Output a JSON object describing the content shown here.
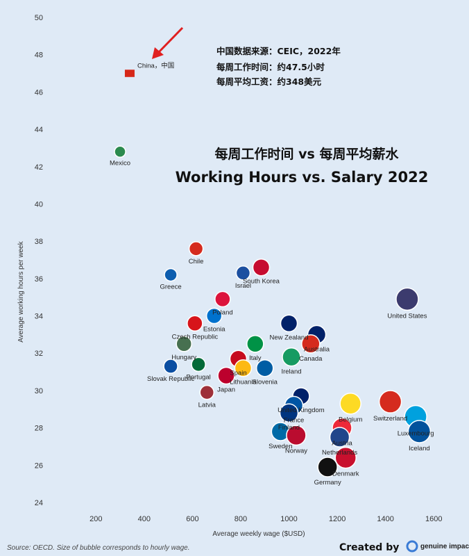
{
  "chart_data": {
    "type": "scatter",
    "title_cn": "每周工作时间 vs 每周平均薪水",
    "title": "Working Hours vs. Salary 2022",
    "xlabel": "Average weekly wage ($USD)",
    "ylabel": "Average working hours per week",
    "xlim": [
      90,
      1700
    ],
    "ylim": [
      24,
      50
    ],
    "xticks": [
      200,
      400,
      600,
      800,
      1000,
      1200,
      1400,
      1600
    ],
    "yticks": [
      24,
      26,
      28,
      30,
      32,
      34,
      36,
      38,
      40,
      42,
      44,
      46,
      48,
      50
    ],
    "points": [
      {
        "name": "China，中国",
        "x": 340,
        "y": 47.0,
        "r": 7,
        "color": "#d62718"
      },
      {
        "name": "Mexico",
        "x": 300,
        "y": 42.8,
        "r": 8,
        "color": "#2b8a4e"
      },
      {
        "name": "Chile",
        "x": 615,
        "y": 37.6,
        "r": 10,
        "color": "#d52b1e"
      },
      {
        "name": "Greece",
        "x": 510,
        "y": 36.2,
        "r": 9,
        "color": "#0d5eaf"
      },
      {
        "name": "Israel",
        "x": 810,
        "y": 36.3,
        "r": 10,
        "color": "#1b4fa0"
      },
      {
        "name": "South Korea",
        "x": 885,
        "y": 36.6,
        "r": 12,
        "color": "#c60c30"
      },
      {
        "name": "Poland",
        "x": 725,
        "y": 34.9,
        "r": 11,
        "color": "#dc143c"
      },
      {
        "name": "Estonia",
        "x": 690,
        "y": 34.0,
        "r": 11,
        "color": "#0072ce"
      },
      {
        "name": "Czech Republic",
        "x": 610,
        "y": 33.6,
        "r": 11,
        "color": "#d7141a"
      },
      {
        "name": "New Zealand",
        "x": 1000,
        "y": 33.6,
        "r": 12,
        "color": "#012169"
      },
      {
        "name": "Australia",
        "x": 1115,
        "y": 33.0,
        "r": 13,
        "color": "#012169"
      },
      {
        "name": "Canada",
        "x": 1090,
        "y": 32.5,
        "r": 13,
        "color": "#d52b1e"
      },
      {
        "name": "United States",
        "x": 1490,
        "y": 34.9,
        "r": 16,
        "color": "#3c3b6e"
      },
      {
        "name": "Hungary",
        "x": 565,
        "y": 32.5,
        "r": 11,
        "color": "#477050"
      },
      {
        "name": "Italy",
        "x": 860,
        "y": 32.5,
        "r": 12,
        "color": "#009246"
      },
      {
        "name": "Ireland",
        "x": 1010,
        "y": 31.8,
        "r": 13,
        "color": "#169b62"
      },
      {
        "name": "Spain",
        "x": 790,
        "y": 31.7,
        "r": 12,
        "color": "#c60b1e"
      },
      {
        "name": "Portugal",
        "x": 625,
        "y": 31.4,
        "r": 10,
        "color": "#046a38"
      },
      {
        "name": "Slovak Republic",
        "x": 510,
        "y": 31.3,
        "r": 10,
        "color": "#0b4ea2"
      },
      {
        "name": "Lithuania",
        "x": 810,
        "y": 31.2,
        "r": 12,
        "color": "#fdb913"
      },
      {
        "name": "Slovenia",
        "x": 900,
        "y": 31.2,
        "r": 12,
        "color": "#005da4"
      },
      {
        "name": "Japan",
        "x": 740,
        "y": 30.8,
        "r": 12,
        "color": "#bc002d"
      },
      {
        "name": "Latvia",
        "x": 660,
        "y": 29.9,
        "r": 10,
        "color": "#9e3039"
      },
      {
        "name": "United Kingdom",
        "x": 1050,
        "y": 29.7,
        "r": 12,
        "color": "#012169"
      },
      {
        "name": "France",
        "x": 1020,
        "y": 29.2,
        "r": 13,
        "color": "#0055a4"
      },
      {
        "name": "Finland",
        "x": 1000,
        "y": 28.8,
        "r": 13,
        "color": "#003580"
      },
      {
        "name": "Belgium",
        "x": 1255,
        "y": 29.3,
        "r": 15,
        "color": "#fdda24"
      },
      {
        "name": "Switzerland",
        "x": 1420,
        "y": 29.4,
        "r": 16,
        "color": "#d52b1e"
      },
      {
        "name": "Luxembourg",
        "x": 1525,
        "y": 28.6,
        "r": 16,
        "color": "#00a1de"
      },
      {
        "name": "Austria",
        "x": 1220,
        "y": 28.0,
        "r": 14,
        "color": "#ed2939"
      },
      {
        "name": "Netherlands",
        "x": 1210,
        "y": 27.5,
        "r": 14,
        "color": "#21468b"
      },
      {
        "name": "Iceland",
        "x": 1540,
        "y": 27.8,
        "r": 16,
        "color": "#02529c"
      },
      {
        "name": "Sweden",
        "x": 965,
        "y": 27.8,
        "r": 13,
        "color": "#006aa7"
      },
      {
        "name": "Norway",
        "x": 1030,
        "y": 27.6,
        "r": 14,
        "color": "#ba0c2f"
      },
      {
        "name": "Denmark",
        "x": 1235,
        "y": 26.4,
        "r": 15,
        "color": "#c8102e"
      },
      {
        "name": "Germany",
        "x": 1160,
        "y": 25.9,
        "r": 14,
        "color": "#111111"
      }
    ],
    "info_lines": [
      "中国数据来源：CEIC，2022年",
      "每周工作时间：约47.5小时",
      "每周平均工资：约348美元"
    ],
    "source_note": "Source: OECD. Size of bubble corresponds to hourly wage.",
    "credit": "Created by",
    "brand": "genuine impact"
  }
}
